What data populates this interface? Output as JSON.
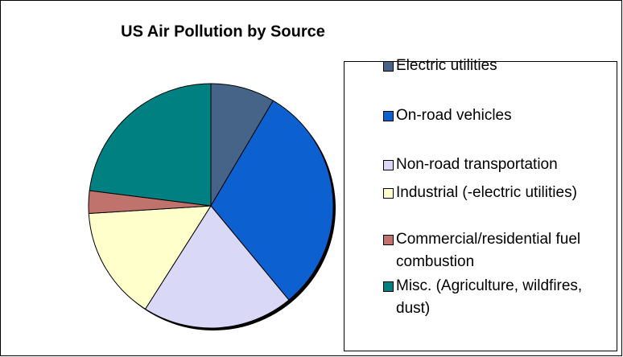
{
  "chart_data": {
    "type": "pie",
    "title": "US Air Pollution by Source",
    "categories": [
      "Electric utilities",
      "On-road vehicles",
      "Non-road transportation",
      "Industrial (-electric utilities)",
      "Commercial/residential fuel combustion",
      "Misc. (Agriculture, wildfires, dust)"
    ],
    "values": [
      8.5,
      30.5,
      20,
      15,
      3,
      23
    ],
    "colors": [
      "#456487",
      "#0d60d0",
      "#d9d9f7",
      "#ffffcc",
      "#c0726c",
      "#008080"
    ]
  }
}
